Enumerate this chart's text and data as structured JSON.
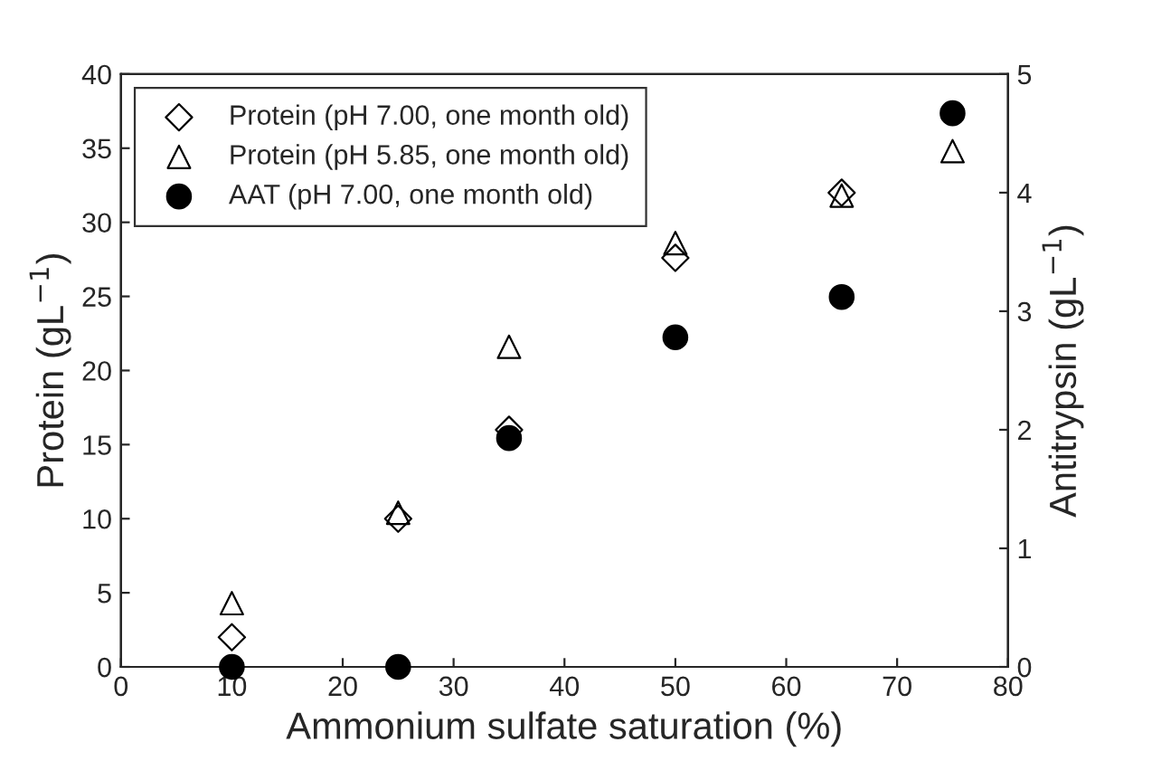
{
  "chart_data": {
    "type": "scatter",
    "xlabel": "Ammonium sulfate saturation (%)",
    "ylabel": "Protein (gL$^{−1}$)",
    "y2label": "Antitrypsin (gL$^{−1}$)",
    "x": [
      10,
      25,
      35,
      50,
      65,
      75
    ],
    "series": [
      {
        "name": "Protein (pH 7.00, one month old)",
        "color": "#000000",
        "marker": "diamond",
        "values": [
          2,
          10,
          16,
          27.6,
          32,
          null
        ]
      },
      {
        "name": "Protein (pH 5.85, one month old)",
        "color": "#000000",
        "marker": "triangle",
        "values": [
          4.3,
          10.4,
          21.6,
          28.6,
          31.8,
          34.8
        ]
      },
      {
        "name": "AAT (pH 7.00, one month old)",
        "color": "#000000",
        "marker": "circle",
        "axis": "y2",
        "values": [
          0,
          0,
          1.93,
          2.78,
          3.12,
          4.67
        ]
      }
    ],
    "xlim": [
      0,
      80
    ],
    "xticks": [
      0,
      10,
      20,
      30,
      40,
      50,
      60,
      70,
      80
    ],
    "ylim": [
      0,
      40
    ],
    "yticks": [
      0,
      5,
      10,
      15,
      20,
      25,
      30,
      35,
      40
    ],
    "y2lim": [
      0,
      5
    ],
    "y2ticks": [
      0,
      1,
      2,
      3,
      4,
      5
    ],
    "legend": "top left",
    "grid": false
  }
}
